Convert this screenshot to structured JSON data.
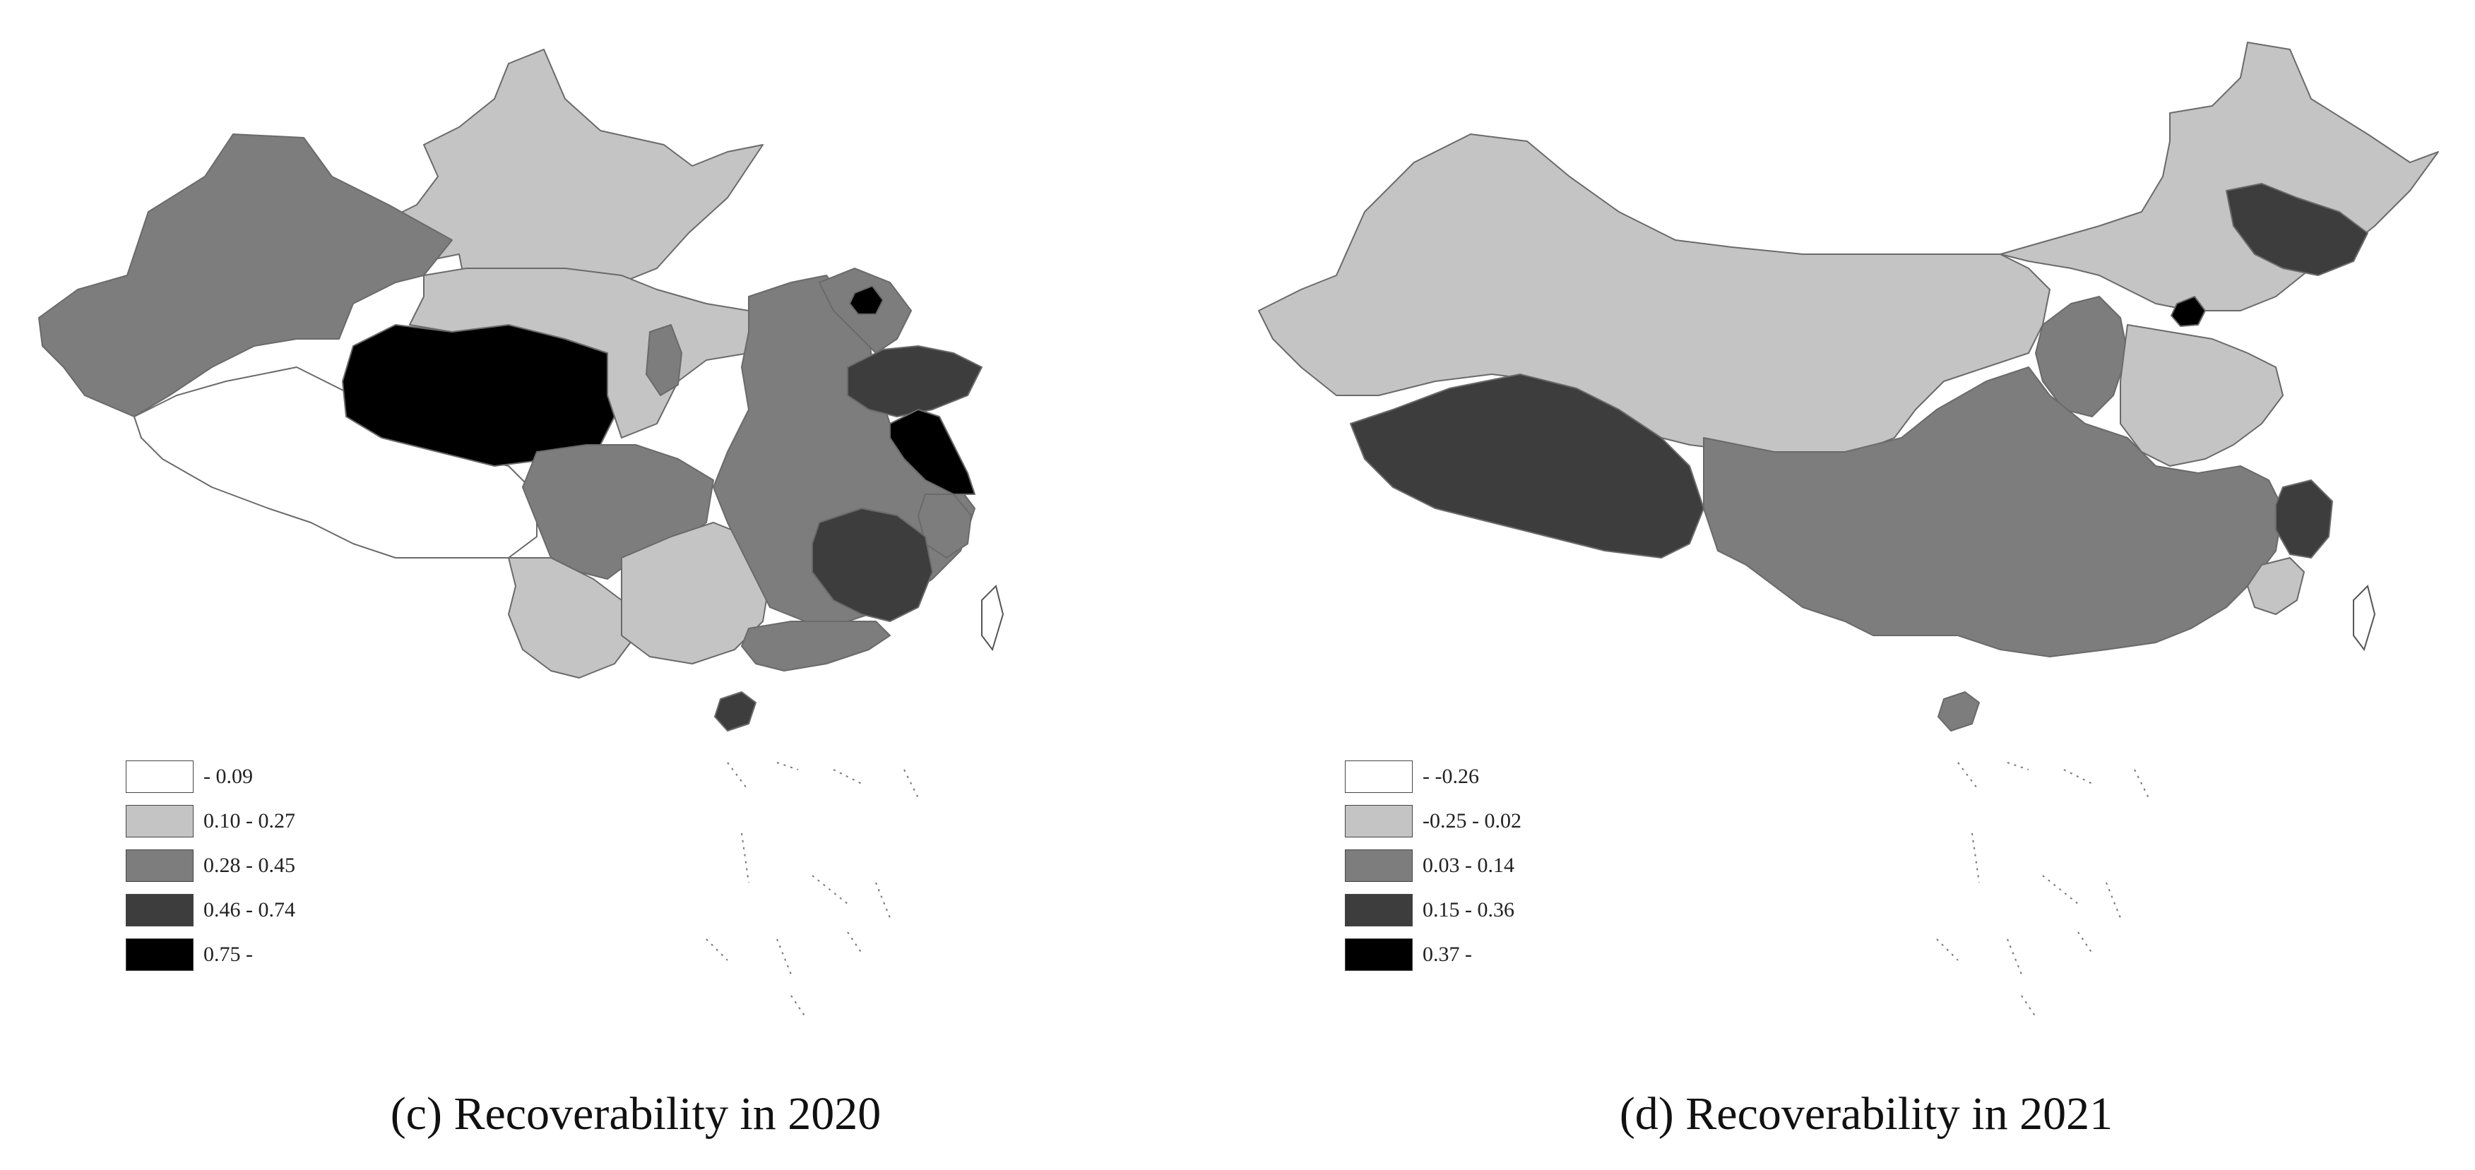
{
  "colors": {
    "class1": "#ffffff",
    "class2": "#c4c4c4",
    "class3": "#7d7d7d",
    "class4": "#3d3d3d",
    "class5": "#000000"
  },
  "panels": [
    {
      "caption": "(c) Recoverability in 2020",
      "legend": [
        "- 0.09",
        "0.10 - 0.27",
        "0.28 - 0.45",
        "0.46 - 0.74",
        "0.75 -"
      ]
    },
    {
      "caption": "(d) Recoverability in 2021",
      "legend": [
        "- -0.26",
        "-0.25 - 0.02",
        "0.03 - 0.14",
        "0.15 - 0.36",
        "0.37 -"
      ]
    }
  ]
}
